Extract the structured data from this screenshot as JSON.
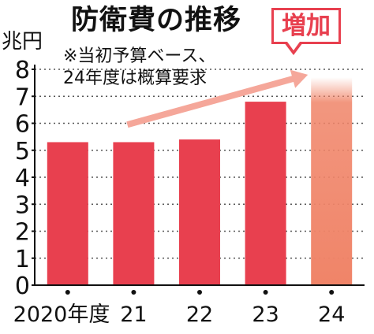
{
  "title": "防衛費の推移",
  "unit_label": "兆円",
  "note": [
    "※当初予算ベース、",
    "24年度は概算要求"
  ],
  "badge": "増加",
  "colors": {
    "bar": "#e8404f",
    "bar_requested": "#f08468",
    "arrow": "#f5a79a",
    "grid": "#555555",
    "axis": "#111111"
  },
  "chart_data": {
    "type": "bar",
    "title": "防衛費の推移",
    "ylabel": "兆円",
    "xlabel": "",
    "categories": [
      "2020年度",
      "21",
      "22",
      "23",
      "24"
    ],
    "values": [
      5.3,
      5.3,
      5.4,
      6.8,
      7.7
    ],
    "ylim": [
      0,
      8
    ],
    "yticks": [
      0,
      1,
      2,
      3,
      4,
      5,
      6,
      7,
      8
    ],
    "grid": true,
    "annotations": [
      "※当初予算ベース、24年度は概算要求",
      "増加"
    ]
  }
}
